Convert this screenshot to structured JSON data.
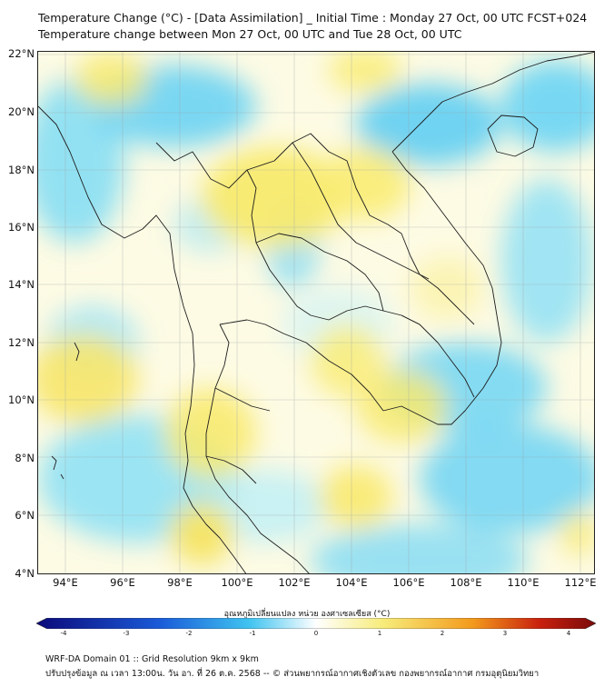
{
  "titles": {
    "line1": "Temperature Change (°C) - [Data Assimilation] _ Initial Time : Monday 27 Oct, 00 UTC FCST+024",
    "line2": "Temperature change between Mon 27 Oct, 00 UTC and Tue 28 Oct, 00 UTC"
  },
  "axes": {
    "lat_labels": [
      "22°N",
      "20°N",
      "18°N",
      "16°N",
      "14°N",
      "12°N",
      "10°N",
      "8°N",
      "6°N",
      "4°N"
    ],
    "lon_labels": [
      "94°E",
      "96°E",
      "98°E",
      "100°E",
      "102°E",
      "104°E",
      "106°E",
      "108°E",
      "110°E",
      "112°E"
    ],
    "lon_range": [
      93,
      112.5
    ],
    "lat_range": [
      4,
      22.2
    ]
  },
  "colorbar": {
    "title": "อุณหภูมิเปลี่ยนแปลง หน่วย องศาเซลเซียส (°C)",
    "ticks": [
      "-4",
      "-3",
      "-2",
      "-1",
      "0",
      "1",
      "2",
      "3",
      "4"
    ],
    "range": [
      -4,
      4
    ],
    "colors": {
      "strong_cold": "#0b0a7a",
      "cold": "#1a5ad8",
      "cool": "#3fc3f0",
      "neutral": "#ffffff",
      "warm": "#f7ec7a",
      "hot": "#f39a1c",
      "very_hot": "#c8200e",
      "extreme": "#7a0a0a"
    }
  },
  "footer": {
    "line1": "WRF-DA Domain 01 :: Grid Resolution 9km x 9km",
    "line2": "ปรับปรุงข้อมูล ณ เวลา 13:00น. วัน อา. ที่ 26 ต.ค. 2568 -- © ส่วนพยากรณ์อากาศเชิงตัวเลข กองพยากรณ์อากาศ กรมอุตุนิยมวิทยา"
  }
}
